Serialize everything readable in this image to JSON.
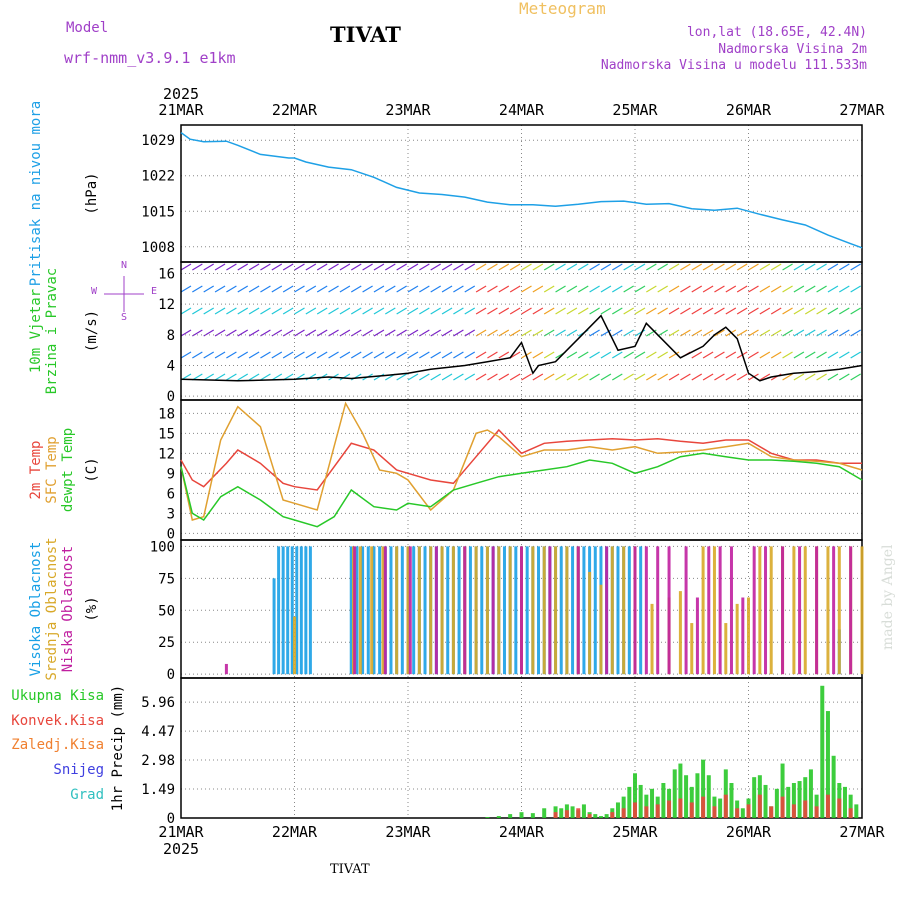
{
  "header": {
    "model_label": "Model",
    "model_name": "wrf-nmm_v3.9.1 e1km",
    "station": "TIVAT",
    "product": "Meteogram",
    "coords": "lon,lat (18.65E, 42.4N)",
    "elevation": "Nadmorska Visina 2m",
    "model_elevation": "Nadmorska Visina u modelu 111.533m"
  },
  "footer": {
    "station": "TIVAT"
  },
  "watermark": "made by Angel",
  "colors": {
    "pressure": "#1ea0e6",
    "temp2m": "#e8463c",
    "sfc_temp": "#e0a030",
    "dewpoint": "#28c828",
    "cloud_high": "#18a0e6",
    "cloud_mid": "#d8a828",
    "cloud_low": "#c020a0",
    "precip_total": "#28c828",
    "precip_conv": "#e8463c",
    "precip_frz": "#f08030",
    "snow": "#4040e0",
    "hail": "#30c0c0",
    "label_purple": "#a040c8"
  },
  "chart_data": {
    "type": "line",
    "x_axis": {
      "year": "2025",
      "ticks": [
        "21MAR",
        "22MAR",
        "23MAR",
        "24MAR",
        "25MAR",
        "26MAR",
        "27MAR"
      ],
      "range_days": [
        0,
        6
      ]
    },
    "panels": [
      {
        "id": "pressure",
        "ylabel_lines": [
          "Pritisak na nivou mora"
        ],
        "unit": "(hPa)",
        "yticks": [
          1008,
          1015,
          1022,
          1029
        ],
        "ylim": [
          1005,
          1032
        ],
        "grid": true,
        "series": [
          {
            "name": "Pritisak na nivou mora",
            "color_key": "pressure",
            "x": [
              0,
              0.08,
              0.2,
              0.4,
              0.5,
              0.7,
              0.95,
              1.0,
              1.1,
              1.3,
              1.5,
              1.7,
              1.9,
              2.1,
              2.3,
              2.5,
              2.7,
              2.9,
              3.1,
              3.3,
              3.5,
              3.7,
              3.9,
              4.1,
              4.3,
              4.5,
              4.7,
              4.9,
              5.1,
              5.3,
              5.5,
              5.7,
              5.9,
              6.0
            ],
            "y": [
              1030.5,
              1029.2,
              1028.7,
              1028.8,
              1028.0,
              1026.2,
              1025.5,
              1025.5,
              1024.7,
              1023.7,
              1023.2,
              1021.7,
              1019.7,
              1018.6,
              1018.3,
              1017.8,
              1016.8,
              1016.3,
              1016.3,
              1016.0,
              1016.4,
              1016.9,
              1017.0,
              1016.4,
              1016.5,
              1015.5,
              1015.2,
              1015.6,
              1014.4,
              1013.3,
              1012.3,
              1010.3,
              1008.6,
              1007.8
            ]
          }
        ]
      },
      {
        "id": "wind",
        "ylabel_lines": [
          "10m Vjetar",
          "Brzina i Pravac"
        ],
        "unit": "(m/s)",
        "compass": [
          "N",
          "E",
          "S",
          "W"
        ],
        "yticks": [
          0,
          4,
          8,
          12,
          16
        ],
        "ylim": [
          -0.5,
          17.5
        ],
        "grid": true,
        "series": [
          {
            "name": "10m Vjetar Brzina",
            "color": "#000000",
            "x": [
              0,
              0.5,
              1.0,
              1.3,
              1.5,
              1.8,
              2.0,
              2.2,
              2.5,
              2.7,
              2.9,
              3.0,
              3.1,
              3.15,
              3.3,
              3.5,
              3.7,
              3.85,
              4.0,
              4.1,
              4.2,
              4.4,
              4.6,
              4.7,
              4.8,
              4.9,
              5.0,
              5.1,
              5.2,
              5.4,
              5.6,
              5.8,
              6.0
            ],
            "y": [
              2.2,
              2.0,
              2.2,
              2.5,
              2.3,
              2.7,
              3.0,
              3.5,
              4.0,
              4.5,
              5.0,
              7.0,
              3.0,
              4.0,
              4.5,
              7.5,
              10.5,
              6.0,
              6.5,
              9.5,
              8.0,
              5.0,
              6.5,
              8.0,
              9.0,
              7.5,
              3.0,
              2.0,
              2.5,
              3.0,
              3.2,
              3.5,
              4.0
            ]
          }
        ]
      },
      {
        "id": "temperature",
        "ylabel_lines": [
          "2m Temp",
          "SFC Temp",
          "dewpt Temp"
        ],
        "unit": "(C)",
        "yticks": [
          0,
          3,
          6,
          9,
          12,
          15,
          18
        ],
        "ylim": [
          -1,
          20
        ],
        "grid": true,
        "series": [
          {
            "name": "2m Temp",
            "color_key": "temp2m",
            "x": [
              0,
              0.1,
              0.2,
              0.4,
              0.5,
              0.7,
              0.9,
              1.0,
              1.2,
              1.5,
              1.7,
              1.9,
              2.0,
              2.2,
              2.4,
              2.6,
              2.8,
              3.0,
              3.2,
              3.4,
              3.6,
              3.8,
              4.0,
              4.2,
              4.4,
              4.6,
              4.8,
              5.0,
              5.2,
              5.4,
              5.6,
              5.8,
              6.0
            ],
            "y": [
              11,
              8,
              7,
              10.5,
              12.5,
              10.5,
              7.5,
              7.0,
              6.5,
              13.5,
              12.5,
              9.5,
              9.0,
              8.0,
              7.5,
              11.5,
              15.5,
              12.0,
              13.5,
              13.8,
              14.0,
              14.2,
              14.0,
              14.2,
              13.8,
              13.5,
              14.0,
              14.0,
              12.0,
              11.0,
              11.0,
              10.5,
              10.5
            ]
          },
          {
            "name": "SFC Temp",
            "color_key": "sfc_temp",
            "x": [
              0,
              0.1,
              0.2,
              0.35,
              0.5,
              0.7,
              0.9,
              1.0,
              1.2,
              1.45,
              1.6,
              1.75,
              1.9,
              2.0,
              2.2,
              2.4,
              2.6,
              2.7,
              2.8,
              3.0,
              3.2,
              3.4,
              3.6,
              3.8,
              4.0,
              4.2,
              4.4,
              4.6,
              4.8,
              5.0,
              5.2,
              5.4,
              5.6,
              5.8,
              6.0
            ],
            "y": [
              10,
              2,
              2.5,
              14,
              19,
              16,
              5,
              4.5,
              3.5,
              19.5,
              15,
              9.5,
              9.0,
              8.0,
              3.5,
              6.5,
              15,
              15.5,
              14.5,
              11.5,
              12.5,
              12.5,
              13.0,
              12.5,
              13.0,
              12.0,
              12.2,
              12.5,
              13.0,
              13.5,
              11.5,
              11.0,
              10.8,
              10.5,
              9.5
            ]
          },
          {
            "name": "dewpt Temp",
            "color_key": "dewpoint",
            "x": [
              0,
              0.1,
              0.2,
              0.35,
              0.5,
              0.7,
              0.9,
              1.0,
              1.2,
              1.35,
              1.5,
              1.7,
              1.9,
              2.0,
              2.2,
              2.4,
              2.6,
              2.8,
              3.0,
              3.2,
              3.4,
              3.6,
              3.8,
              4.0,
              4.2,
              4.4,
              4.6,
              4.8,
              5.0,
              5.2,
              5.4,
              5.6,
              5.8,
              6.0
            ],
            "y": [
              10,
              3,
              2,
              5.5,
              7,
              5,
              2.5,
              2,
              1,
              2.5,
              6.5,
              4,
              3.5,
              4.5,
              4.0,
              6.5,
              7.5,
              8.5,
              9.0,
              9.5,
              10.0,
              11.0,
              10.5,
              9.0,
              10.0,
              11.5,
              12.0,
              11.5,
              11.0,
              11.0,
              10.8,
              10.5,
              10.0,
              8.0
            ]
          }
        ]
      },
      {
        "id": "clouds",
        "type": "bar",
        "ylabel_lines": [
          "Visoka Oblacnost",
          "Srednja Oblacnost",
          "Niska Oblacnost"
        ],
        "unit": "(%)",
        "yticks": [
          0,
          25,
          50,
          75,
          100
        ],
        "ylim": [
          -3,
          105
        ],
        "grid": true,
        "series": [
          {
            "name": "Visoka Oblacnost",
            "color_key": "cloud_high",
            "x": [
              0.82,
              0.86,
              0.9,
              0.94,
              0.98,
              1.02,
              1.06,
              1.1,
              1.14,
              1.5,
              1.55,
              1.6,
              1.65,
              1.7,
              1.75,
              1.8,
              1.85,
              1.9,
              1.95,
              2.0,
              2.05,
              2.1,
              2.15,
              2.2,
              2.25,
              2.3,
              2.35,
              2.4,
              2.45,
              2.5,
              2.55,
              2.6,
              2.65,
              2.7,
              2.75,
              2.8,
              2.85,
              2.9,
              2.95,
              3.0,
              3.05,
              3.1,
              3.15,
              3.2,
              3.25,
              3.3,
              3.35,
              3.4,
              3.45,
              3.5,
              3.55,
              3.6,
              3.65,
              3.7,
              3.75,
              3.8,
              3.85,
              3.9,
              3.95,
              4.0,
              4.05,
              5.8
            ],
            "values": [
              75,
              100,
              100,
              100,
              100,
              100,
              100,
              100,
              100,
              100,
              100,
              100,
              100,
              100,
              100,
              100,
              100,
              100,
              100,
              100,
              100,
              100,
              100,
              100,
              100,
              100,
              100,
              100,
              100,
              100,
              100,
              100,
              100,
              100,
              100,
              100,
              100,
              100,
              100,
              100,
              100,
              100,
              100,
              100,
              100,
              100,
              100,
              100,
              100,
              100,
              100,
              100,
              100,
              100,
              100,
              100,
              100,
              100,
              100,
              100,
              100,
              35
            ]
          },
          {
            "name": "Srednja Oblacnost",
            "color_key": "cloud_mid",
            "x": [
              1.0,
              1.52,
              1.58,
              1.68,
              1.78,
              1.9,
              2.0,
              2.1,
              2.2,
              2.3,
              2.4,
              2.5,
              2.6,
              2.7,
              2.8,
              2.9,
              3.0,
              3.1,
              3.2,
              3.3,
              3.4,
              3.5,
              3.6,
              3.7,
              3.8,
              3.9,
              4.0,
              4.15,
              4.3,
              4.4,
              4.5,
              4.6,
              4.7,
              4.8,
              4.9,
              5.0,
              5.1,
              5.2,
              5.3,
              5.4,
              5.5,
              5.6,
              5.7,
              5.8,
              5.9,
              6.0
            ],
            "values": [
              45,
              100,
              100,
              100,
              100,
              100,
              100,
              100,
              100,
              100,
              100,
              100,
              100,
              100,
              100,
              100,
              100,
              100,
              100,
              100,
              100,
              100,
              80,
              70,
              100,
              100,
              100,
              55,
              60,
              65,
              40,
              100,
              100,
              40,
              55,
              60,
              100,
              100,
              100,
              100,
              100,
              100,
              100,
              100,
              100,
              100
            ]
          },
          {
            "name": "Niska Oblacnost",
            "color_key": "cloud_low",
            "x": [
              0.4,
              1.53,
              1.8,
              2.02,
              2.25,
              2.5,
              2.75,
              3.0,
              3.25,
              3.5,
              3.75,
              4.0,
              4.1,
              4.2,
              4.3,
              4.45,
              4.55,
              4.65,
              4.75,
              4.85,
              4.95,
              5.05,
              5.15,
              5.3,
              5.45,
              5.6,
              5.75,
              5.9
            ],
            "values": [
              8,
              100,
              100,
              100,
              100,
              100,
              100,
              100,
              100,
              100,
              100,
              100,
              100,
              100,
              100,
              100,
              60,
              100,
              100,
              100,
              60,
              100,
              100,
              100,
              100,
              100,
              100,
              100
            ]
          }
        ]
      },
      {
        "id": "precip",
        "type": "bar",
        "legend": [
          "Ukupna Kisa",
          "Konvek.Kisa",
          "Zaledj.Kisa",
          "Snijeg",
          "Grad"
        ],
        "ylabel_lines": [
          "1hr Precip (mm)"
        ],
        "yticks": [
          0,
          1.49,
          2.98,
          4.47,
          5.96
        ],
        "ylim": [
          0,
          7.2
        ],
        "grid": true,
        "series": [
          {
            "name": "Ukupna Kisa",
            "color_key": "precip_total",
            "x": [
              2.7,
              2.8,
              2.9,
              3.0,
              3.1,
              3.2,
              3.3,
              3.35,
              3.4,
              3.45,
              3.5,
              3.55,
              3.6,
              3.65,
              3.7,
              3.75,
              3.8,
              3.85,
              3.9,
              3.95,
              4.0,
              4.05,
              4.1,
              4.15,
              4.2,
              4.25,
              4.3,
              4.35,
              4.4,
              4.45,
              4.5,
              4.55,
              4.6,
              4.65,
              4.7,
              4.75,
              4.8,
              4.85,
              4.9,
              4.95,
              5.0,
              5.05,
              5.1,
              5.15,
              5.2,
              5.25,
              5.3,
              5.35,
              5.4,
              5.45,
              5.5,
              5.55,
              5.6,
              5.65,
              5.7,
              5.75,
              5.8,
              5.85,
              5.9,
              5.95
            ],
            "values": [
              0.05,
              0.1,
              0.2,
              0.3,
              0.25,
              0.5,
              0.6,
              0.5,
              0.7,
              0.6,
              0.4,
              0.7,
              0.3,
              0.2,
              0.1,
              0.2,
              0.5,
              0.8,
              1.1,
              1.6,
              2.3,
              1.7,
              1.2,
              1.5,
              1.1,
              1.8,
              1.5,
              2.5,
              2.8,
              2.2,
              1.6,
              2.3,
              3.0,
              2.2,
              1.1,
              1.0,
              2.5,
              1.8,
              0.9,
              0.5,
              1.0,
              2.1,
              2.2,
              1.7,
              0.6,
              1.5,
              2.8,
              1.6,
              1.8,
              1.9,
              2.1,
              2.5,
              1.2,
              6.8,
              5.5,
              3.2,
              1.8,
              1.6,
              1.2,
              0.7
            ]
          },
          {
            "name": "Konvek.Kisa",
            "color_key": "precip_conv",
            "x": [
              3.3,
              3.4,
              3.5,
              3.6,
              3.8,
              3.9,
              4.0,
              4.1,
              4.2,
              4.3,
              4.4,
              4.5,
              4.6,
              4.7,
              4.8,
              4.9,
              5.0,
              5.1,
              5.2,
              5.3,
              5.4,
              5.5,
              5.6,
              5.7,
              5.8,
              5.9
            ],
            "values": [
              0.3,
              0.4,
              0.5,
              0.2,
              0.3,
              0.5,
              0.8,
              0.6,
              0.7,
              0.9,
              1.0,
              0.8,
              1.1,
              0.6,
              1.2,
              0.5,
              0.7,
              1.2,
              0.6,
              1.1,
              0.7,
              0.9,
              0.6,
              1.2,
              1.0,
              0.5
            ]
          }
        ]
      }
    ]
  }
}
